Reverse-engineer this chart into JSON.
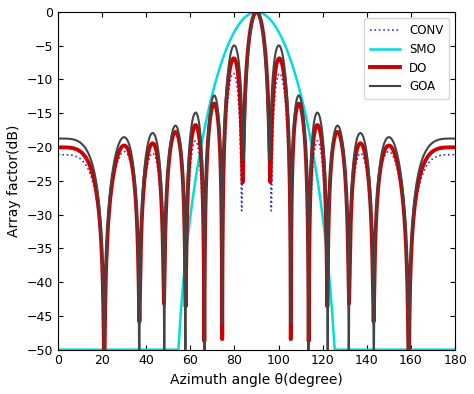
{
  "title": "",
  "xlabel": "Azimuth angle θ(degree)",
  "ylabel": "Array factor(dB)",
  "xlim": [
    0,
    180
  ],
  "ylim": [
    -50,
    0
  ],
  "xticks": [
    0,
    20,
    40,
    60,
    80,
    100,
    120,
    140,
    160,
    180
  ],
  "yticks": [
    0,
    -5,
    -10,
    -15,
    -20,
    -25,
    -30,
    -35,
    -40,
    -45,
    -50
  ],
  "conv_color": "#3333cc",
  "smo_color": "#00dddd",
  "do_color": "#cc0000",
  "goa_color": "#444444",
  "conv_linewidth": 1.2,
  "smo_linewidth": 1.8,
  "do_linewidth": 2.8,
  "goa_linewidth": 1.5,
  "legend_labels": [
    "CONV",
    "SMO",
    "DO",
    "GOA"
  ],
  "background_color": "#ffffff"
}
